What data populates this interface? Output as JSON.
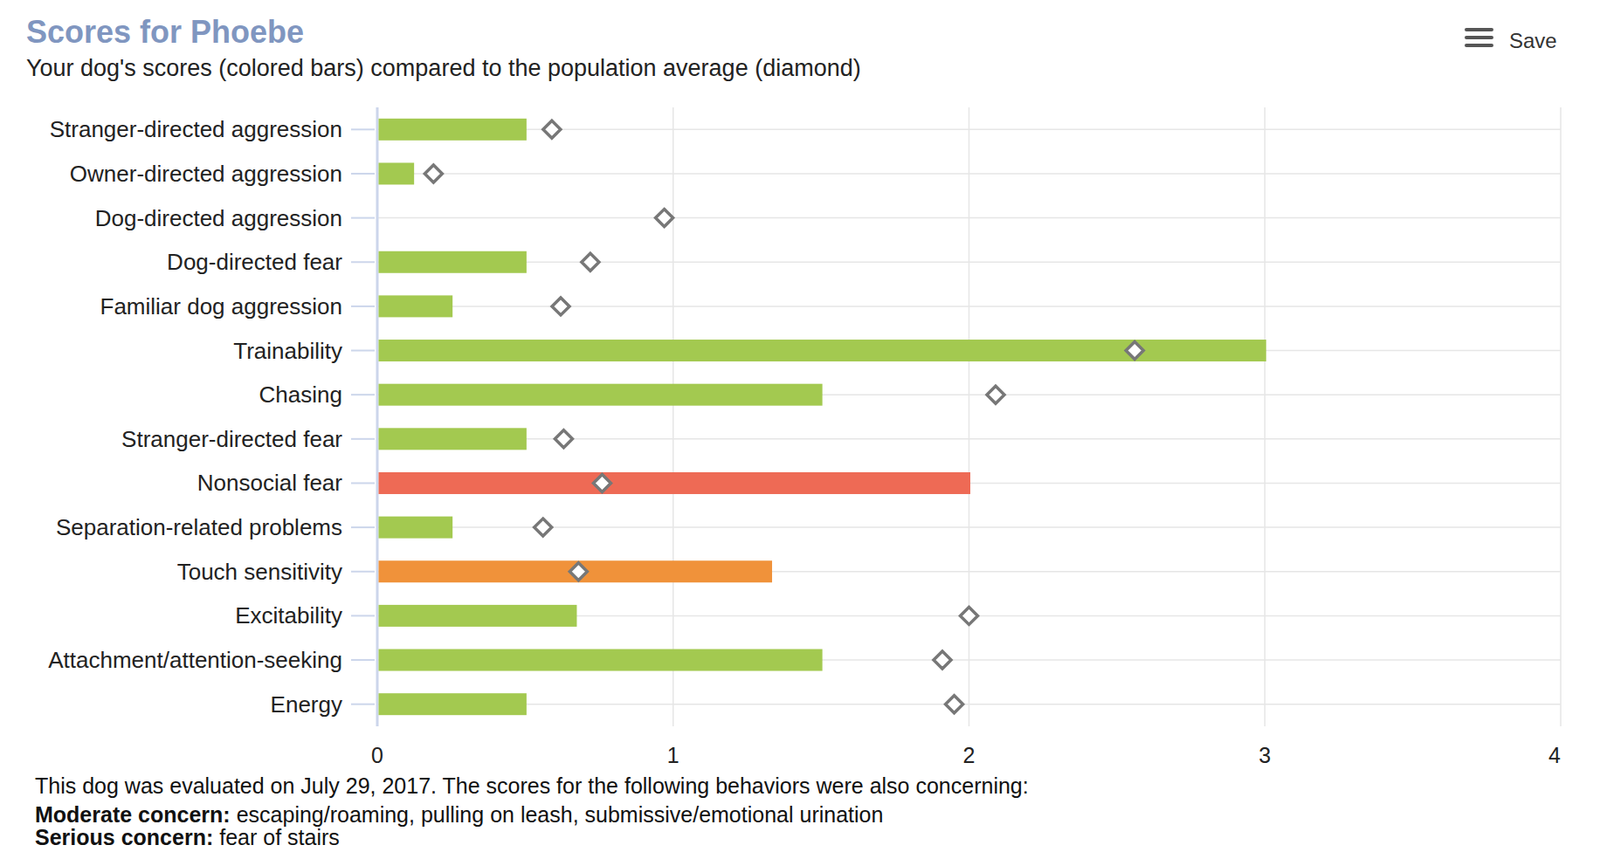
{
  "chart_data": {
    "type": "bar",
    "orientation": "horizontal",
    "title": "Scores for Phoebe",
    "subtitle": "Your dog's scores (colored bars) compared to the population average (diamond)",
    "categories": [
      "Stranger-directed aggression",
      "Owner-directed aggression",
      "Dog-directed aggression",
      "Dog-directed fear",
      "Familiar dog aggression",
      "Trainability",
      "Chasing",
      "Stranger-directed fear",
      "Nonsocial fear",
      "Separation-related problems",
      "Touch sensitivity",
      "Excitability",
      "Attachment/attention-seeking",
      "Energy"
    ],
    "values": [
      0.5,
      0.12,
      0,
      0.5,
      0.25,
      3,
      1.5,
      0.5,
      2,
      0.25,
      1.33,
      0.67,
      1.5,
      0.5
    ],
    "colors": [
      "#a3c950",
      "#a3c950",
      "#a3c950",
      "#a3c950",
      "#a3c950",
      "#a3c950",
      "#a3c950",
      "#a3c950",
      "#ee6a55",
      "#a3c950",
      "#f0923a",
      "#a3c950",
      "#a3c950",
      "#a3c950"
    ],
    "population_average": [
      0.59,
      0.19,
      0.97,
      0.72,
      0.62,
      2.56,
      2.09,
      0.63,
      0.76,
      0.56,
      0.68,
      2,
      1.91,
      1.95
    ],
    "xlim": [
      0,
      4
    ],
    "xticks": [
      0,
      1,
      2,
      3,
      4
    ],
    "grid": true
  },
  "menu": {
    "label": "Save"
  },
  "footer": {
    "intro": "This dog was evaluated on July 29, 2017. The scores for the following behaviors were also concerning:",
    "moderate_label": "Moderate concern:",
    "moderate_text": "escaping/roaming, pulling on leash, submissive/emotional urination",
    "serious_label": "Serious concern:",
    "serious_text": "fear of stairs"
  }
}
